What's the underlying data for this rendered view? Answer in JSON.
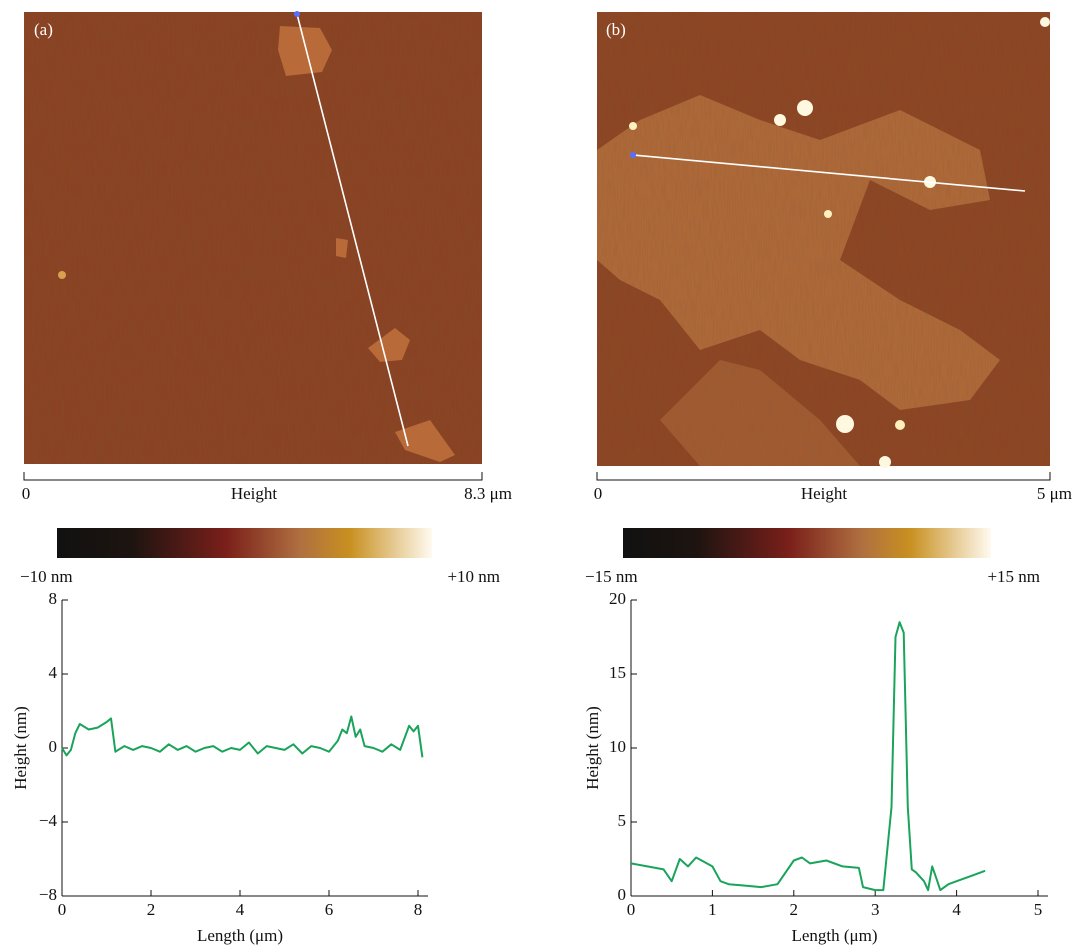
{
  "panels": [
    {
      "label": "(a)",
      "scale_start": "0",
      "scale_name": "Height",
      "scale_end": "8.3 μm",
      "cbar_min": "−10 nm",
      "cbar_max": "+10 nm"
    },
    {
      "label": "(b)",
      "scale_start": "0",
      "scale_name": "Height",
      "scale_end": "5 μm",
      "cbar_min": "−15 nm",
      "cbar_max": "+15 nm"
    }
  ],
  "chart_data": [
    {
      "type": "line",
      "xlabel": "Length (μm)",
      "ylabel": "Height (nm)",
      "color": "#1aa35a",
      "x": [
        0,
        0.1,
        0.2,
        0.3,
        0.4,
        0.6,
        0.8,
        1.0,
        1.1,
        1.2,
        1.4,
        1.6,
        1.8,
        2.0,
        2.2,
        2.4,
        2.6,
        2.8,
        3.0,
        3.2,
        3.4,
        3.6,
        3.8,
        4.0,
        4.2,
        4.4,
        4.6,
        4.8,
        5.0,
        5.2,
        5.4,
        5.6,
        5.8,
        6.0,
        6.2,
        6.3,
        6.4,
        6.5,
        6.6,
        6.7,
        6.8,
        7.0,
        7.2,
        7.4,
        7.6,
        7.8,
        7.9,
        8.0,
        8.1
      ],
      "values": [
        0,
        -0.4,
        -0.1,
        0.8,
        1.3,
        1.0,
        1.1,
        1.4,
        1.6,
        -0.2,
        0.1,
        -0.1,
        0.1,
        0.0,
        -0.2,
        0.2,
        -0.1,
        0.1,
        -0.2,
        0.0,
        0.1,
        -0.2,
        0.0,
        -0.1,
        0.3,
        -0.3,
        0.1,
        0.0,
        -0.1,
        0.2,
        -0.3,
        0.1,
        0.0,
        -0.2,
        0.4,
        1.0,
        0.8,
        1.7,
        0.6,
        1.0,
        0.1,
        0.0,
        -0.2,
        0.2,
        -0.1,
        1.2,
        0.9,
        1.2,
        -0.5
      ],
      "xlim": [
        0,
        8
      ],
      "xticks": [
        0,
        2,
        4,
        6,
        8
      ],
      "ylim": [
        -8,
        8
      ],
      "yticks": [
        {
          "value": -8,
          "label": "−8"
        },
        {
          "value": -4,
          "label": "−4"
        },
        0,
        4,
        8
      ]
    },
    {
      "type": "line",
      "xlabel": "Length (μm)",
      "ylabel": "Height (nm)",
      "color": "#1aa35a",
      "x": [
        0,
        0.2,
        0.4,
        0.5,
        0.6,
        0.7,
        0.8,
        1.0,
        1.1,
        1.2,
        1.4,
        1.6,
        1.8,
        2.0,
        2.1,
        2.2,
        2.4,
        2.6,
        2.8,
        2.85,
        3.0,
        3.1,
        3.2,
        3.25,
        3.3,
        3.35,
        3.4,
        3.45,
        3.5,
        3.6,
        3.65,
        3.7,
        3.75,
        3.8,
        3.9,
        4.0,
        4.2,
        4.35
      ],
      "values": [
        2.2,
        2.0,
        1.8,
        1.0,
        2.5,
        2.0,
        2.6,
        2.0,
        1.0,
        0.8,
        0.7,
        0.6,
        0.8,
        2.4,
        2.6,
        2.2,
        2.4,
        2.0,
        1.9,
        0.6,
        0.4,
        0.4,
        6.0,
        17.5,
        18.5,
        17.8,
        6.0,
        1.8,
        1.6,
        1.0,
        0.4,
        2.0,
        1.2,
        0.4,
        0.8,
        1.0,
        1.4,
        1.7
      ],
      "xlim": [
        0,
        5
      ],
      "xticks": [
        0,
        1,
        2,
        3,
        4,
        5
      ],
      "ylim": [
        0,
        20
      ],
      "yticks": [
        0,
        5,
        10,
        15,
        20
      ]
    }
  ]
}
